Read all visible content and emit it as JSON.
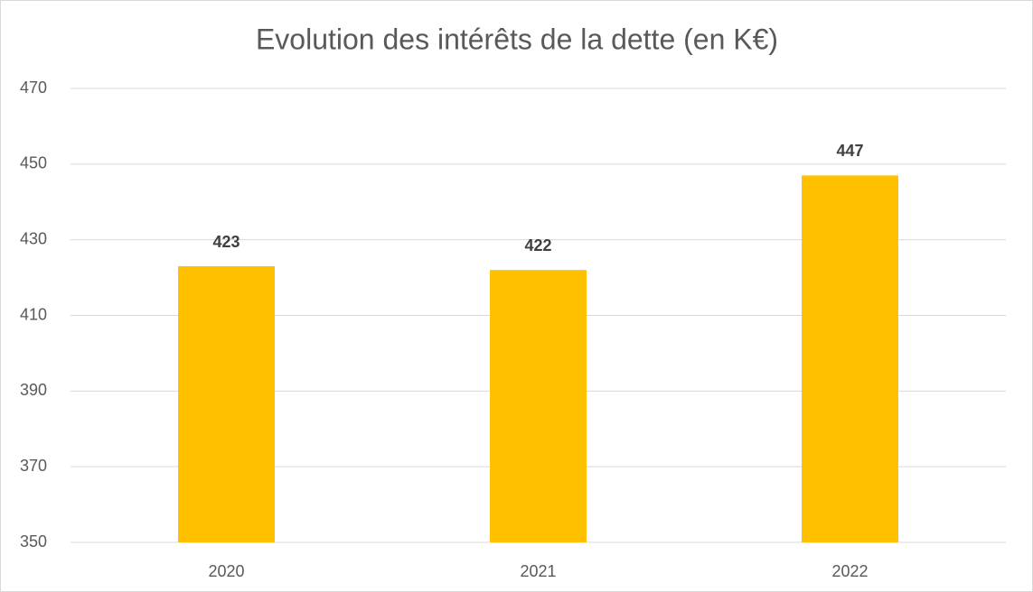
{
  "chart_data": {
    "type": "bar",
    "title": "Evolution des intérêts de la dette (en K€)",
    "categories": [
      "2020",
      "2021",
      "2022"
    ],
    "values": [
      423,
      422,
      447
    ],
    "color": "#ffc000",
    "ylim": [
      350,
      470
    ],
    "yticks": [
      350,
      370,
      390,
      410,
      430,
      450,
      470
    ],
    "grid": true
  }
}
